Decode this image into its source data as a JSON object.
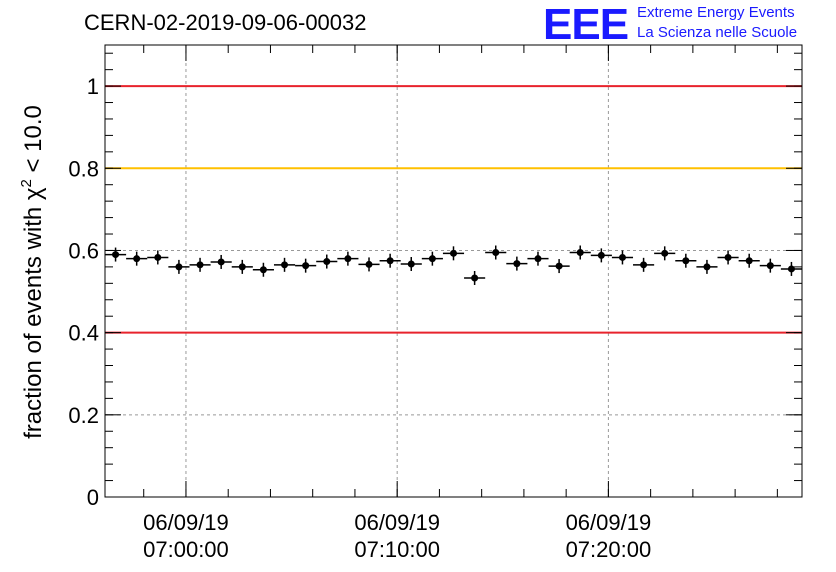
{
  "title": "CERN-02-2019-09-06-00032",
  "logo": {
    "mark": "EEE",
    "line1": "Extreme Energy Events",
    "line2": "La Scienza nelle Scuole"
  },
  "chart_data": {
    "type": "scatter",
    "ylabel_prefix": "fraction of events with χ",
    "ylabel_sup": "2",
    "ylabel_suffix": " < 10.0",
    "ylim": [
      0,
      1.1
    ],
    "yticks": [
      0,
      0.2,
      0.4,
      0.6,
      0.8,
      1
    ],
    "ytick_labels": [
      "0",
      "0.2",
      "0.4",
      "0.6",
      "0.8",
      "1"
    ],
    "xlim": [
      "06:56:10",
      "07:29:10"
    ],
    "xticks": [
      {
        "time": "07:00:00",
        "date": "06/09/19",
        "label": "07:00:00"
      },
      {
        "time": "07:10:00",
        "date": "06/09/19",
        "label": "07:10:00"
      },
      {
        "time": "07:20:00",
        "date": "06/09/19",
        "label": "07:20:00"
      }
    ],
    "grid": true,
    "reference_lines": [
      {
        "y": 1.0,
        "color": "#e8232c"
      },
      {
        "y": 0.8,
        "color": "#ffc000"
      },
      {
        "y": 0.4,
        "color": "#e8232c"
      }
    ],
    "series": [
      {
        "x": [
          "06:56:40",
          "06:57:40",
          "06:58:40",
          "06:59:40",
          "07:00:40",
          "07:01:40",
          "07:02:40",
          "07:03:40",
          "07:04:40",
          "07:05:40",
          "07:06:40",
          "07:07:40",
          "07:08:40",
          "07:09:40",
          "07:10:40",
          "07:11:40",
          "07:12:40",
          "07:13:40",
          "07:14:40",
          "07:15:40",
          "07:16:40",
          "07:17:40",
          "07:18:40",
          "07:19:40",
          "07:20:40",
          "07:21:40",
          "07:22:40",
          "07:23:40",
          "07:24:40",
          "07:25:40",
          "07:26:40",
          "07:27:40",
          "07:28:40"
        ],
        "y": [
          0.59,
          0.58,
          0.583,
          0.56,
          0.565,
          0.572,
          0.56,
          0.553,
          0.565,
          0.563,
          0.573,
          0.58,
          0.566,
          0.575,
          0.567,
          0.58,
          0.593,
          0.533,
          0.595,
          0.568,
          0.58,
          0.562,
          0.595,
          0.588,
          0.583,
          0.565,
          0.593,
          0.575,
          0.56,
          0.583,
          0.575,
          0.563,
          0.555
        ],
        "color": "#000000"
      }
    ]
  }
}
